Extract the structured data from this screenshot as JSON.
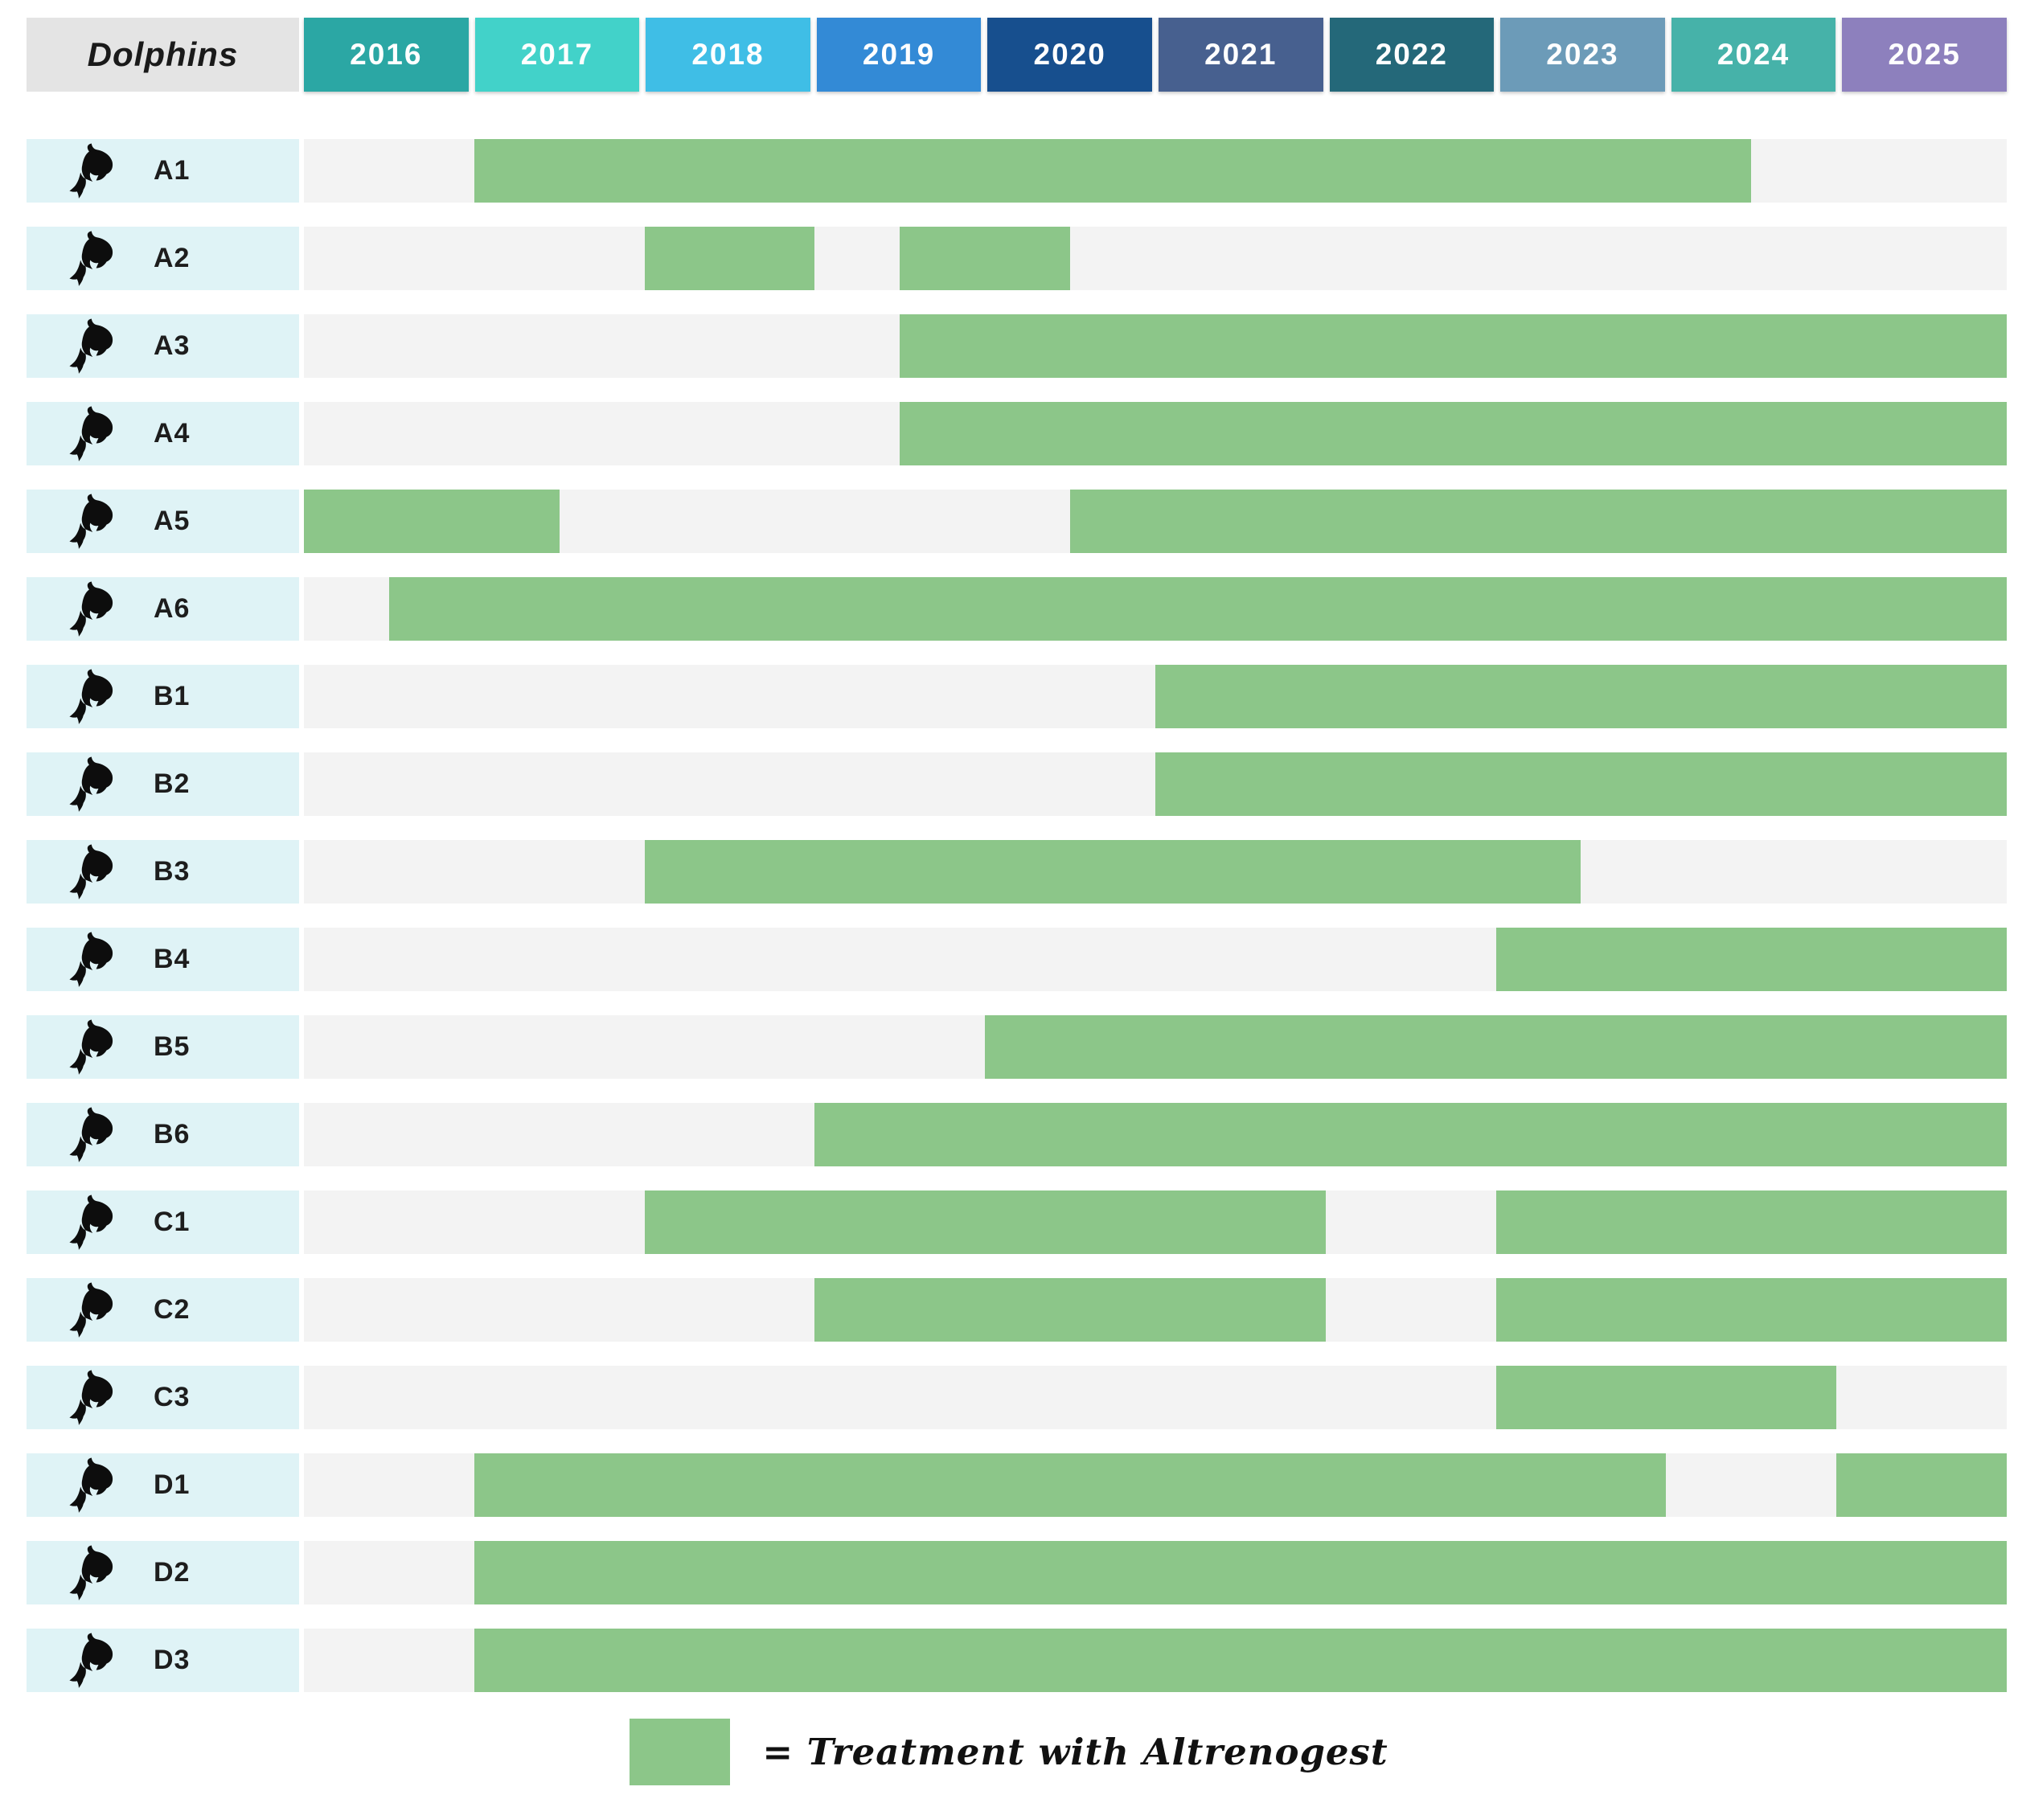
{
  "title_cell": "Dolphins",
  "colors": {
    "bar_green": "#8CC689",
    "track_gray": "#F3F3F3",
    "row_label_bg": "#DFF3F6",
    "title_cell_bg": "#E4E4E4",
    "year_text": "#FFFFFF",
    "row_label_text": "#1D1D1D",
    "dolphin_icon": "#0D0D0D"
  },
  "legend": {
    "label": "= Treatment with Altrenogest",
    "swatch_color": "#8CC689"
  },
  "chart_data": {
    "type": "bar",
    "subtype": "gantt-timeline",
    "x_axis": {
      "unit": "year",
      "range": [
        2016,
        2026
      ],
      "ticks": [
        "2016",
        "2017",
        "2018",
        "2019",
        "2020",
        "2021",
        "2022",
        "2023",
        "2024",
        "2025"
      ]
    },
    "tick_colors": [
      "#2BA7A4",
      "#42D2C9",
      "#3FBEE6",
      "#338AD6",
      "#174F8E",
      "#47608F",
      "#246879",
      "#6C9BB8",
      "#46B2A9",
      "#8D80BD"
    ],
    "grid": false,
    "legend_position": "bottom-center",
    "categories": [
      "A1",
      "A2",
      "A3",
      "A4",
      "A5",
      "A6",
      "B1",
      "B2",
      "B3",
      "B4",
      "B5",
      "B6",
      "C1",
      "C2",
      "C3",
      "D1",
      "D2",
      "D3"
    ],
    "rows": [
      {
        "label": "A1",
        "treatment_intervals": [
          [
            2017.0,
            2024.5
          ]
        ]
      },
      {
        "label": "A2",
        "treatment_intervals": [
          [
            2018.0,
            2019.0
          ],
          [
            2019.5,
            2020.5
          ]
        ]
      },
      {
        "label": "A3",
        "treatment_intervals": [
          [
            2019.5,
            2026.0
          ]
        ]
      },
      {
        "label": "A4",
        "treatment_intervals": [
          [
            2019.5,
            2026.0
          ]
        ]
      },
      {
        "label": "A5",
        "treatment_intervals": [
          [
            2016.0,
            2017.5
          ],
          [
            2020.5,
            2026.0
          ]
        ]
      },
      {
        "label": "A6",
        "treatment_intervals": [
          [
            2016.5,
            2026.0
          ]
        ]
      },
      {
        "label": "B1",
        "treatment_intervals": [
          [
            2021.0,
            2026.0
          ]
        ]
      },
      {
        "label": "B2",
        "treatment_intervals": [
          [
            2021.0,
            2026.0
          ]
        ]
      },
      {
        "label": "B3",
        "treatment_intervals": [
          [
            2018.0,
            2023.5
          ]
        ]
      },
      {
        "label": "B4",
        "treatment_intervals": [
          [
            2023.0,
            2026.0
          ]
        ]
      },
      {
        "label": "B5",
        "treatment_intervals": [
          [
            2020.0,
            2026.0
          ]
        ]
      },
      {
        "label": "B6",
        "treatment_intervals": [
          [
            2019.0,
            2026.0
          ]
        ]
      },
      {
        "label": "C1",
        "treatment_intervals": [
          [
            2018.0,
            2022.0
          ],
          [
            2023.0,
            2026.0
          ]
        ]
      },
      {
        "label": "C2",
        "treatment_intervals": [
          [
            2019.0,
            2022.0
          ],
          [
            2023.0,
            2026.0
          ]
        ]
      },
      {
        "label": "C3",
        "treatment_intervals": [
          [
            2023.0,
            2025.0
          ]
        ]
      },
      {
        "label": "D1",
        "treatment_intervals": [
          [
            2017.0,
            2024.0
          ],
          [
            2025.0,
            2026.0
          ]
        ]
      },
      {
        "label": "D2",
        "treatment_intervals": [
          [
            2017.0,
            2026.0
          ]
        ]
      },
      {
        "label": "D3",
        "treatment_intervals": [
          [
            2017.0,
            2026.0
          ]
        ]
      }
    ],
    "bar_meaning": "Treatment with Altrenogest"
  }
}
